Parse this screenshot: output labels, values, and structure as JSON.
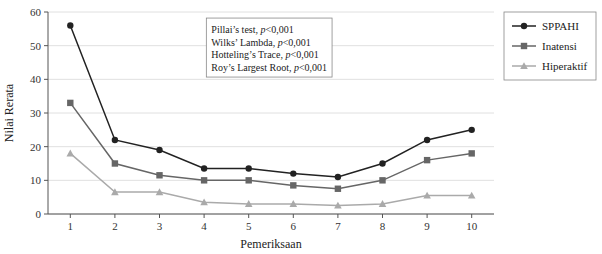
{
  "chart_data": {
    "type": "line",
    "x": [
      1,
      2,
      3,
      4,
      5,
      6,
      7,
      8,
      9,
      10
    ],
    "xlim": [
      0.5,
      10.5
    ],
    "xticks": [
      1,
      2,
      3,
      4,
      5,
      6,
      7,
      8,
      9,
      10
    ],
    "ylim": [
      0,
      60
    ],
    "yticks": [
      0,
      10,
      20,
      30,
      40,
      50,
      60
    ],
    "xlabel": "Pemeriksaan",
    "ylabel": "Nilai Rerata",
    "grid": true,
    "legend": "right",
    "annotations": [
      "Pillai’s test, p<0,001",
      "Wilks’ Lambda, p<0,001",
      "Hotteling’s Trace, p<0,001",
      "Roy’s Largest Root, p<0,001"
    ],
    "series": [
      {
        "name": "SPPAHI",
        "color": "#222222",
        "marker": "circle",
        "values": [
          56,
          22,
          19,
          13.5,
          13.5,
          12,
          11,
          15,
          22,
          25
        ]
      },
      {
        "name": "Inatensi",
        "color": "#666666",
        "marker": "square",
        "values": [
          33,
          15,
          11.5,
          10,
          10,
          8.5,
          7.5,
          10,
          16,
          18
        ]
      },
      {
        "name": "Hiperaktif",
        "color": "#aaaaaa",
        "marker": "triangle",
        "values": [
          18,
          6.5,
          6.5,
          3.5,
          3,
          3,
          2.5,
          3,
          5.5,
          5.5
        ]
      }
    ]
  }
}
